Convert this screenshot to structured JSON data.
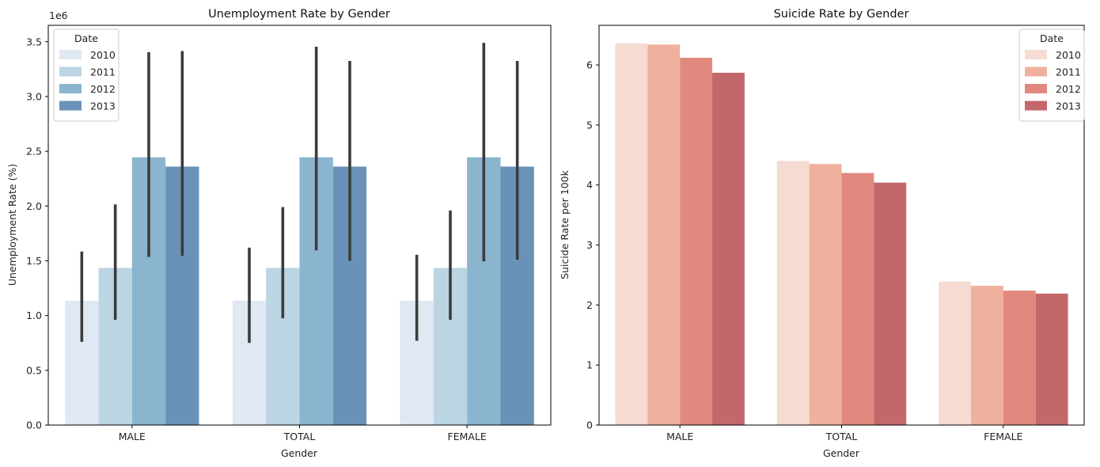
{
  "chart_data": [
    {
      "type": "bar",
      "title": "Unemployment Rate by Gender",
      "xlabel": "Gender",
      "ylabel": "Unemployment Rate (%)",
      "scale_note": "1e6",
      "categories": [
        "MALE",
        "TOTAL",
        "FEMALE"
      ],
      "ylim": [
        0,
        3.65
      ],
      "yticks": [
        0.0,
        0.5,
        1.0,
        1.5,
        2.0,
        2.5,
        3.0,
        3.5
      ],
      "ytick_labels": [
        "0.0",
        "0.5",
        "1.0",
        "1.5",
        "2.0",
        "2.5",
        "3.0",
        "3.5"
      ],
      "legend": {
        "title": "Date",
        "placement": "upper-left"
      },
      "series": [
        {
          "name": "2010",
          "color": "#e0e8f4",
          "values": [
            1.135,
            1.135,
            1.135
          ],
          "err_low": [
            0.76,
            0.75,
            0.77
          ],
          "err_high": [
            1.585,
            1.62,
            1.555
          ]
        },
        {
          "name": "2011",
          "color": "#bbd5e3",
          "values": [
            1.435,
            1.435,
            1.435
          ],
          "err_low": [
            0.96,
            0.975,
            0.96
          ],
          "err_high": [
            2.015,
            1.99,
            1.96
          ]
        },
        {
          "name": "2012",
          "color": "#8bb4cf",
          "values": [
            2.445,
            2.445,
            2.445
          ],
          "err_low": [
            1.535,
            1.595,
            1.495
          ],
          "err_high": [
            3.405,
            3.455,
            3.49
          ]
        },
        {
          "name": "2013",
          "color": "#6a92b9",
          "values": [
            2.36,
            2.36,
            2.36
          ],
          "err_low": [
            1.545,
            1.5,
            1.51
          ],
          "err_high": [
            3.415,
            3.325,
            3.325
          ]
        }
      ]
    },
    {
      "type": "bar",
      "title": "Suicide Rate by Gender",
      "xlabel": "Gender",
      "ylabel": "Suicide Rate per 100k",
      "categories": [
        "MALE",
        "TOTAL",
        "FEMALE"
      ],
      "ylim": [
        0,
        6.66
      ],
      "yticks": [
        0,
        1,
        2,
        3,
        4,
        5,
        6
      ],
      "ytick_labels": [
        "0",
        "1",
        "2",
        "3",
        "4",
        "5",
        "6"
      ],
      "legend": {
        "title": "Date",
        "placement": "upper-right"
      },
      "series": [
        {
          "name": "2010",
          "color": "#f5dbd1",
          "values": [
            6.36,
            4.4,
            2.39
          ]
        },
        {
          "name": "2011",
          "color": "#efb19e",
          "values": [
            6.34,
            4.35,
            2.32
          ]
        },
        {
          "name": "2012",
          "color": "#e2897f",
          "values": [
            6.12,
            4.2,
            2.24
          ]
        },
        {
          "name": "2013",
          "color": "#c2686a",
          "values": [
            5.87,
            4.04,
            2.19
          ]
        }
      ]
    }
  ]
}
